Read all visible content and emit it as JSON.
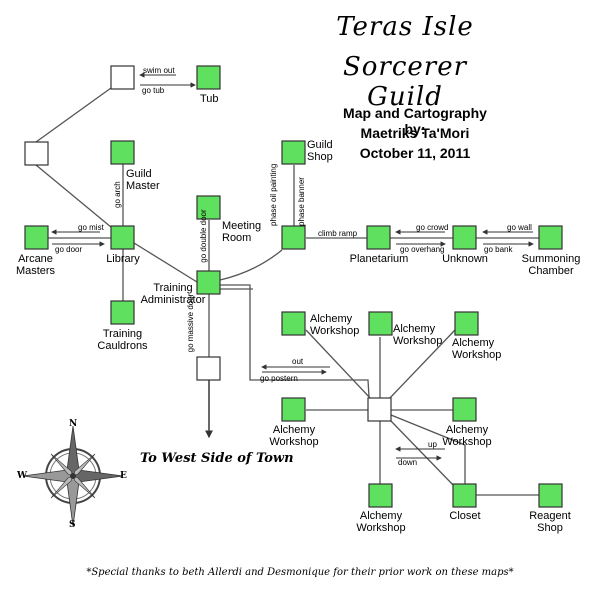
{
  "title": {
    "line1": "Teras Isle",
    "line2": "Sorcerer Guild"
  },
  "credits": {
    "line1": "Map and Cartography by:",
    "line2": "Maetriks Ta'Mori",
    "line3": "October 11, 2011"
  },
  "rooms": {
    "tub": "Tub",
    "guild_master": "Guild Master",
    "guild_shop": "Guild Shop",
    "meeting_room": "Meeting Room",
    "arcane_masters": "Arcane Masters",
    "library": "Library",
    "training_administrator": "Training Administrator",
    "training_cauldrons": "Training Cauldrons",
    "planetarium": "Planetarium",
    "unknown": "Unknown",
    "summoning_chamber": "Summoning Chamber",
    "alchemy_1": "Alchemy Workshop",
    "alchemy_2": "Alchemy Workshop",
    "alchemy_3": "Alchemy Workshop",
    "alchemy_4": "Alchemy Workshop",
    "alchemy_5": "Alchemy Workshop",
    "alchemy_6": "Alchemy Workshop",
    "closet": "Closet",
    "reagent_shop": "Reagent Shop"
  },
  "commands": {
    "swim_out": "swim out",
    "go_tub": "go tub",
    "go_arch": "go arch",
    "go_mist": "go mist",
    "go_door": "go door",
    "go_double_door": "go double door",
    "phase_oil_painting": "phase oil painting",
    "phase_banner": "phase banner",
    "climb_ramp": "climb ramp",
    "go_crowd": "go crowd",
    "go_overhang": "go overhang",
    "go_wall": "go wall",
    "go_bank": "go bank",
    "go_massive_door": "go massive door",
    "out": "out",
    "go_postern": "go postern",
    "up": "up",
    "down": "down"
  },
  "destination": "To West Side of Town",
  "compass": {
    "n": "N",
    "s": "S",
    "e": "E",
    "w": "W"
  },
  "footer": "*Special thanks to beth Allerdi and Desmonique for their prior work on these maps*",
  "colors": {
    "room": "#5fe05f",
    "room_border": "#333333",
    "unexplored": "#ffffff",
    "line": "#555555"
  }
}
